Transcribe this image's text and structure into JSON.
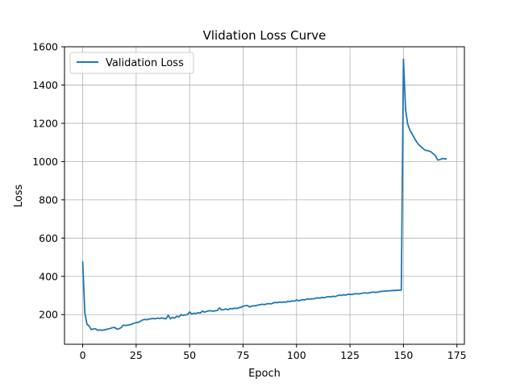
{
  "chart_data": {
    "type": "line",
    "title": "Vlidation Loss Curve",
    "xlabel": "Epoch",
    "ylabel": "Loss",
    "xlim": [
      -8.5,
      178.5
    ],
    "ylim": [
      45,
      1600
    ],
    "x_ticks": [
      0,
      25,
      50,
      75,
      100,
      125,
      150,
      175
    ],
    "y_ticks": [
      200,
      400,
      600,
      800,
      1000,
      1200,
      1400,
      1600
    ],
    "grid": true,
    "legend_position": "top-left",
    "series_color": "#1f77b4",
    "series": [
      {
        "name": "Validation Loss",
        "x": [
          0,
          1,
          2,
          3,
          4,
          5,
          6,
          7,
          8,
          9,
          10,
          11,
          12,
          13,
          14,
          15,
          16,
          17,
          18,
          19,
          20,
          21,
          22,
          23,
          24,
          25,
          26,
          27,
          28,
          29,
          30,
          31,
          32,
          33,
          34,
          35,
          36,
          37,
          38,
          39,
          40,
          41,
          42,
          43,
          44,
          45,
          46,
          47,
          48,
          49,
          50,
          51,
          52,
          53,
          54,
          55,
          56,
          57,
          58,
          59,
          60,
          61,
          62,
          63,
          64,
          65,
          66,
          67,
          68,
          69,
          70,
          71,
          72,
          73,
          74,
          75,
          76,
          77,
          78,
          79,
          80,
          81,
          82,
          83,
          84,
          85,
          86,
          87,
          88,
          89,
          90,
          91,
          92,
          93,
          94,
          95,
          96,
          97,
          98,
          99,
          100,
          101,
          102,
          103,
          104,
          105,
          106,
          107,
          108,
          109,
          110,
          111,
          112,
          113,
          114,
          115,
          116,
          117,
          118,
          119,
          120,
          121,
          122,
          123,
          124,
          125,
          126,
          127,
          128,
          129,
          130,
          131,
          132,
          133,
          134,
          135,
          136,
          137,
          138,
          139,
          140,
          141,
          142,
          143,
          144,
          145,
          146,
          147,
          148,
          149,
          150,
          151,
          152,
          153,
          154,
          155,
          156,
          157,
          158,
          159,
          160,
          161,
          162,
          163,
          164,
          165,
          166,
          167,
          168,
          169,
          170
        ],
        "values": [
          475,
          210,
          150,
          140,
          122,
          125,
          126,
          118,
          120,
          118,
          120,
          123,
          125,
          128,
          132,
          133,
          124,
          126,
          132,
          145,
          143,
          145,
          147,
          150,
          155,
          158,
          160,
          165,
          172,
          175,
          173,
          177,
          178,
          180,
          178,
          182,
          180,
          183,
          180,
          178,
          197,
          178,
          186,
          182,
          192,
          188,
          200,
          196,
          199,
          200,
          214,
          203,
          207,
          206,
          210,
          208,
          218,
          213,
          217,
          220,
          220,
          218,
          220,
          222,
          235,
          224,
          226,
          230,
          225,
          232,
          230,
          234,
          232,
          236,
          238,
          244,
          246,
          248,
          240,
          244,
          246,
          247,
          250,
          252,
          254,
          252,
          256,
          258,
          256,
          260,
          264,
          262,
          266,
          264,
          266,
          265,
          270,
          268,
          272,
          270,
          277,
          272,
          276,
          278,
          277,
          282,
          280,
          283,
          282,
          286,
          288,
          286,
          290,
          288,
          292,
          294,
          292,
          296,
          294,
          298,
          302,
          300,
          304,
          302,
          306,
          306,
          305,
          308,
          310,
          308,
          310,
          312,
          314,
          312,
          314,
          316,
          318,
          316,
          318,
          320,
          322,
          322,
          324,
          324,
          325,
          326,
          326,
          327,
          328,
          328,
          1535,
          1270,
          1195,
          1165,
          1145,
          1125,
          1105,
          1090,
          1080,
          1070,
          1060,
          1058,
          1055,
          1050,
          1040,
          1030,
          1008,
          1010,
          1015,
          1015,
          1014
        ]
      }
    ]
  }
}
